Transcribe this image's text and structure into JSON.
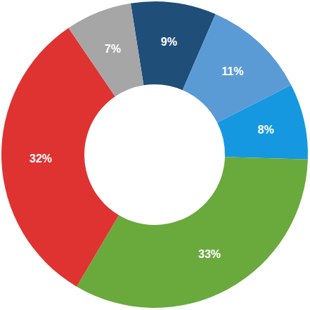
{
  "chart_data": {
    "type": "pie",
    "values": [
      9,
      11,
      8,
      33,
      32,
      7
    ],
    "value_labels": [
      "9%",
      "11%",
      "8%",
      "33%",
      "32%",
      "7%"
    ],
    "colors": [
      "#1f4e79",
      "#5b9bd5",
      "#1598e0",
      "#6aaa3c",
      "#df3332",
      "#a6a6a6"
    ],
    "data_labels": true
  }
}
